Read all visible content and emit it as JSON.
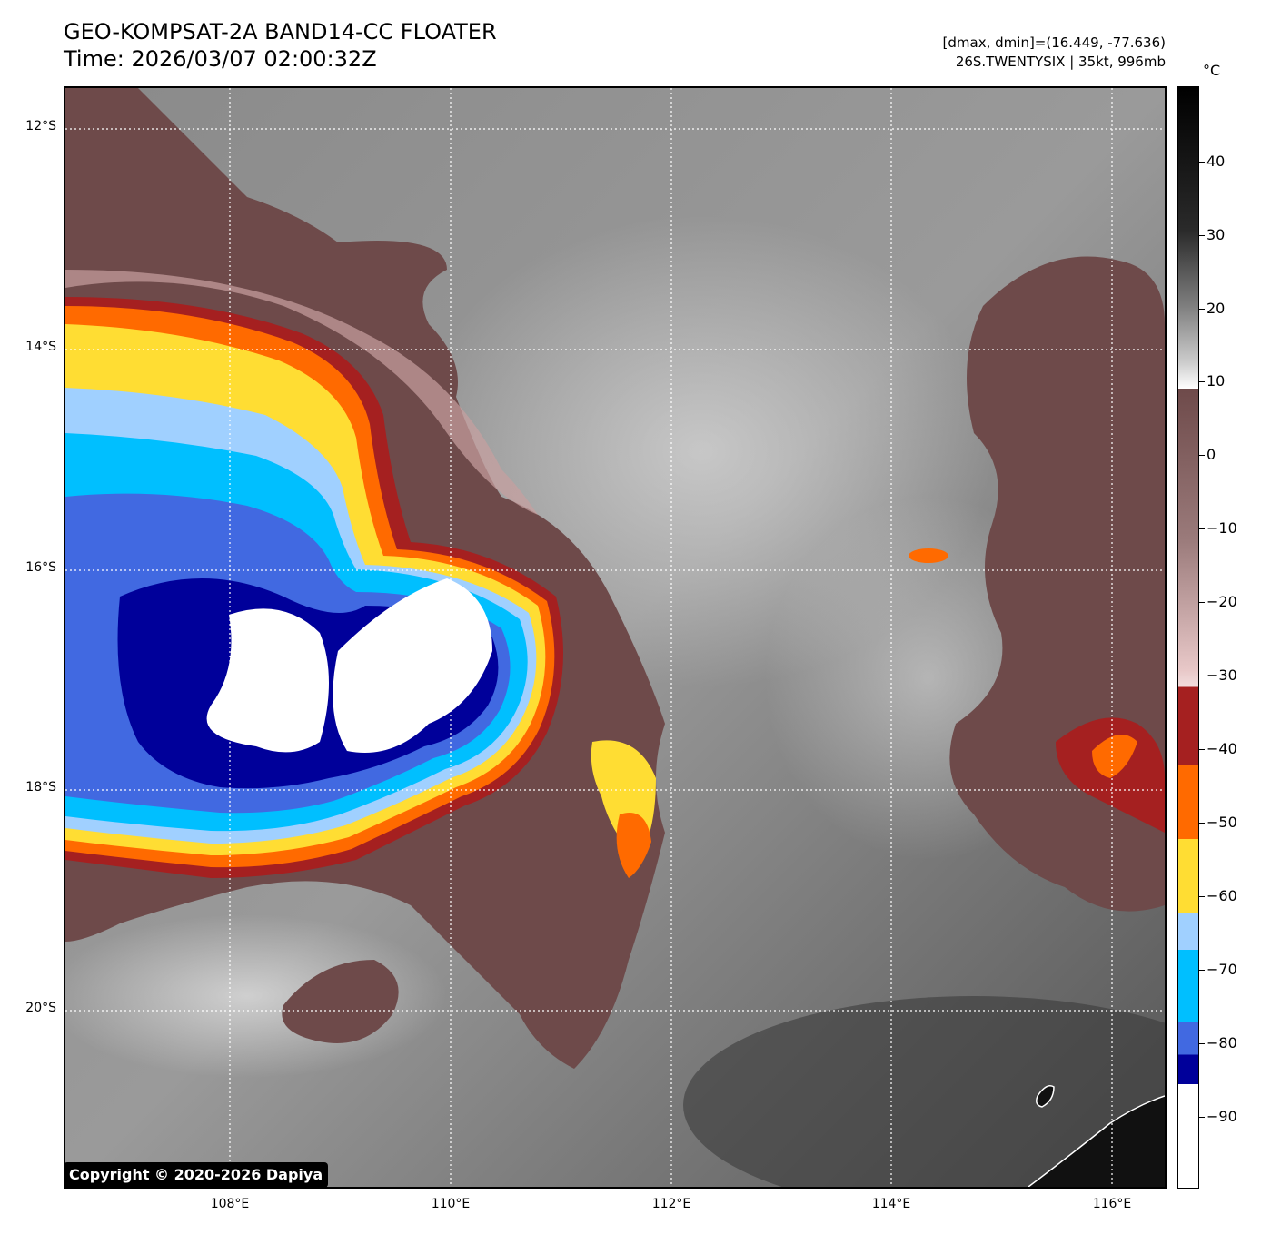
{
  "header": {
    "title_line1": "GEO-KOMPSAT-2A BAND14-CC FLOATER",
    "title_line2": "Time: 2026/03/07 02:00:32Z",
    "meta_line1": "[dmax, dmin]=(16.449, -77.636)",
    "meta_line2": "26S.TWENTYSIX | 35kt, 996mb"
  },
  "map": {
    "lat_labels": [
      "12°S",
      "14°S",
      "16°S",
      "18°S",
      "20°S"
    ],
    "lon_labels": [
      "108°E",
      "110°E",
      "112°E",
      "114°E",
      "116°E"
    ],
    "copyright": "Copyright © 2020-2026 Dapiya"
  },
  "colorbar": {
    "unit": "°C",
    "tick_labels": [
      "40",
      "30",
      "20",
      "10",
      "0",
      "−10",
      "−20",
      "−30",
      "−40",
      "−50",
      "−60",
      "−70",
      "−80",
      "−90"
    ],
    "colors": {
      "warm_top": "#000000",
      "warm_mid": "#808080",
      "warm_low": "#ffffff",
      "brown": "#6e4a4a",
      "pink": "#e8c8c8",
      "dark_red": "#a52020",
      "orange": "#ff6a00",
      "yellow": "#ffdd33",
      "light_blue": "#a0d0ff",
      "cyan": "#00bfff",
      "royal_blue": "#4169e1",
      "navy": "#00009a",
      "white": "#ffffff"
    }
  }
}
